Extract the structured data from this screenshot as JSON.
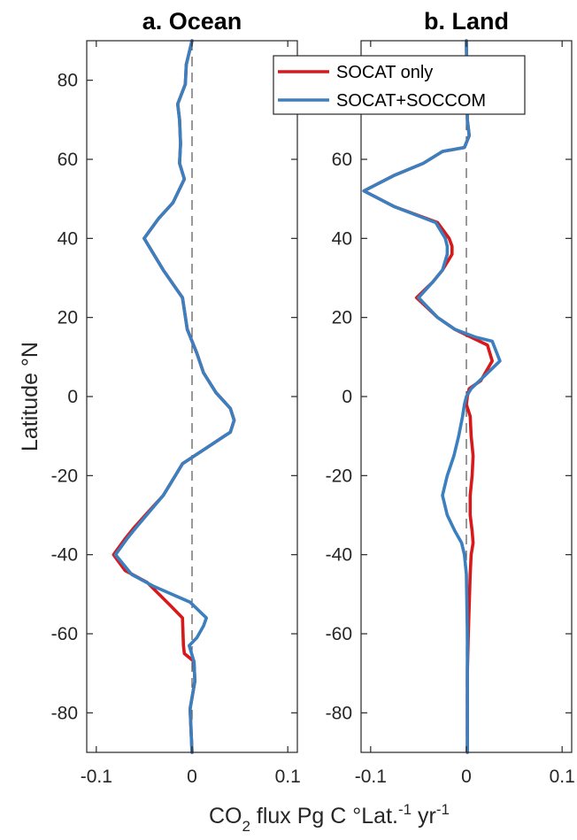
{
  "chart_data": [
    {
      "type": "line",
      "title": "a. Ocean",
      "ylabel": "Latitude °N",
      "xlabel": "",
      "xlim": [
        -0.11,
        0.11
      ],
      "ylim": [
        -90,
        90
      ],
      "xticks": [
        -0.1,
        0,
        0.1
      ],
      "xtick_labels": [
        "-0.1",
        "0",
        "0.1"
      ],
      "yticks": [
        80,
        60,
        40,
        20,
        0,
        -20,
        -40,
        -60,
        -80
      ],
      "ytick_labels": [
        "80",
        "60",
        "40",
        "20",
        "0",
        "-20",
        "-40",
        "-60",
        "-80"
      ],
      "zero_line": true,
      "series": [
        {
          "name": "SOCAT only",
          "color": "#d7191c",
          "points": [
            [
              0.0,
              -90
            ],
            [
              -0.002,
              -79
            ],
            [
              0.003,
              -72
            ],
            [
              0.002,
              -67
            ],
            [
              -0.008,
              -65
            ],
            [
              -0.009,
              -63
            ],
            [
              -0.01,
              -56
            ],
            [
              -0.022,
              -53
            ],
            [
              -0.047,
              -47
            ],
            [
              -0.07,
              -44
            ],
            [
              -0.082,
              -40
            ],
            [
              -0.07,
              -36
            ],
            [
              -0.06,
              -33
            ],
            [
              -0.045,
              -29
            ],
            [
              -0.03,
              -25
            ],
            [
              -0.02,
              -21
            ],
            [
              -0.01,
              -17
            ],
            [
              0.015,
              -13
            ],
            [
              0.04,
              -9
            ],
            [
              0.044,
              -6
            ],
            [
              0.04,
              -3
            ],
            [
              0.025,
              1
            ],
            [
              0.012,
              6
            ],
            [
              0.005,
              11
            ],
            [
              -0.005,
              17
            ],
            [
              -0.01,
              25
            ],
            [
              -0.03,
              32
            ],
            [
              -0.05,
              40
            ],
            [
              -0.035,
              45
            ],
            [
              -0.02,
              49
            ],
            [
              -0.008,
              55
            ],
            [
              -0.013,
              59
            ],
            [
              -0.012,
              64
            ],
            [
              -0.013,
              70
            ],
            [
              -0.015,
              74
            ],
            [
              -0.007,
              79
            ],
            [
              -0.006,
              84
            ],
            [
              0.0,
              90
            ]
          ]
        },
        {
          "name": "SOCAT+SOCCOM",
          "color": "#3b7fbf",
          "points": [
            [
              0.0,
              -90
            ],
            [
              -0.002,
              -79
            ],
            [
              0.003,
              -72
            ],
            [
              0.002,
              -67
            ],
            [
              -0.003,
              -63
            ],
            [
              0.005,
              -61
            ],
            [
              0.012,
              -58
            ],
            [
              0.015,
              -56
            ],
            [
              -0.002,
              -52
            ],
            [
              -0.04,
              -48
            ],
            [
              -0.063,
              -45
            ],
            [
              -0.08,
              -40
            ],
            [
              -0.068,
              -36
            ],
            [
              -0.058,
              -33
            ],
            [
              -0.044,
              -29
            ],
            [
              -0.03,
              -25
            ],
            [
              -0.02,
              -21
            ],
            [
              -0.01,
              -17
            ],
            [
              0.015,
              -13
            ],
            [
              0.04,
              -9
            ],
            [
              0.044,
              -6
            ],
            [
              0.04,
              -3
            ],
            [
              0.025,
              1
            ],
            [
              0.012,
              6
            ],
            [
              0.005,
              11
            ],
            [
              -0.005,
              17
            ],
            [
              -0.01,
              25
            ],
            [
              -0.03,
              32
            ],
            [
              -0.05,
              40
            ],
            [
              -0.035,
              45
            ],
            [
              -0.02,
              49
            ],
            [
              -0.008,
              55
            ],
            [
              -0.013,
              59
            ],
            [
              -0.012,
              64
            ],
            [
              -0.013,
              70
            ],
            [
              -0.015,
              74
            ],
            [
              -0.007,
              79
            ],
            [
              -0.006,
              84
            ],
            [
              0.0,
              90
            ]
          ]
        }
      ]
    },
    {
      "type": "line",
      "title": "b. Land",
      "xlabel": "CO2 flux Pg C °Lat.-1 yr-1",
      "ylabel": "",
      "xlim": [
        -0.11,
        0.11
      ],
      "ylim": [
        -90,
        90
      ],
      "xticks": [
        -0.1,
        0,
        0.1
      ],
      "xtick_labels": [
        "-0.1",
        "0",
        "0.1"
      ],
      "yticks": [
        60,
        40,
        20,
        0,
        -20,
        -40,
        -60,
        -80
      ],
      "ytick_labels": [
        "60",
        "40",
        "20",
        "0",
        "-20",
        "-40",
        "-60",
        "-80"
      ],
      "zero_line": true,
      "legend": {
        "position": "top-right",
        "entries": [
          "SOCAT only",
          "SOCAT+SOCCOM"
        ]
      },
      "series": [
        {
          "name": "SOCAT only",
          "color": "#d7191c",
          "points": [
            [
              0.001,
              -90
            ],
            [
              0.001,
              -70
            ],
            [
              0.002,
              -60
            ],
            [
              0.004,
              -45
            ],
            [
              0.005,
              -40
            ],
            [
              0.007,
              -37
            ],
            [
              0.006,
              -34
            ],
            [
              0.004,
              -30
            ],
            [
              0.004,
              -25
            ],
            [
              0.006,
              -20
            ],
            [
              0.007,
              -15
            ],
            [
              0.005,
              -10
            ],
            [
              0.004,
              -5
            ],
            [
              0.0,
              -2
            ],
            [
              0.001,
              0
            ],
            [
              0.003,
              2
            ],
            [
              0.015,
              4
            ],
            [
              0.027,
              9
            ],
            [
              0.022,
              13
            ],
            [
              0.005,
              15
            ],
            [
              -0.012,
              17
            ],
            [
              -0.03,
              20
            ],
            [
              -0.052,
              25
            ],
            [
              -0.035,
              29
            ],
            [
              -0.025,
              32
            ],
            [
              -0.015,
              36
            ],
            [
              -0.015,
              38
            ],
            [
              -0.018,
              40
            ],
            [
              -0.03,
              44
            ],
            [
              -0.075,
              48
            ],
            [
              -0.107,
              52
            ],
            [
              -0.075,
              56
            ],
            [
              -0.045,
              59
            ],
            [
              -0.025,
              62
            ],
            [
              -0.002,
              63
            ],
            [
              0.003,
              66
            ],
            [
              0.001,
              70
            ],
            [
              0.0,
              90
            ]
          ]
        },
        {
          "name": "SOCAT+SOCCOM",
          "color": "#3b7fbf",
          "points": [
            [
              0.001,
              -90
            ],
            [
              0.001,
              -70
            ],
            [
              0.001,
              -60
            ],
            [
              0.0,
              -45
            ],
            [
              -0.002,
              -40
            ],
            [
              -0.005,
              -37
            ],
            [
              -0.012,
              -34
            ],
            [
              -0.02,
              -30
            ],
            [
              -0.025,
              -25
            ],
            [
              -0.02,
              -20
            ],
            [
              -0.013,
              -15
            ],
            [
              -0.008,
              -10
            ],
            [
              -0.004,
              -5
            ],
            [
              -0.002,
              -2
            ],
            [
              0.0,
              0
            ],
            [
              0.005,
              2
            ],
            [
              0.018,
              5
            ],
            [
              0.035,
              9
            ],
            [
              0.027,
              14
            ],
            [
              0.01,
              15
            ],
            [
              -0.012,
              17
            ],
            [
              -0.03,
              20
            ],
            [
              -0.05,
              25
            ],
            [
              -0.035,
              29
            ],
            [
              -0.025,
              32
            ],
            [
              -0.02,
              36
            ],
            [
              -0.02,
              38
            ],
            [
              -0.022,
              40
            ],
            [
              -0.032,
              44
            ],
            [
              -0.075,
              48
            ],
            [
              -0.107,
              52
            ],
            [
              -0.075,
              56
            ],
            [
              -0.045,
              59
            ],
            [
              -0.025,
              62
            ],
            [
              -0.002,
              63
            ],
            [
              0.003,
              66
            ],
            [
              0.001,
              70
            ],
            [
              0.0,
              90
            ]
          ]
        }
      ]
    }
  ],
  "xlabel_parts": {
    "base": "CO",
    "sub": "2",
    "mid": " flux Pg C °Lat.",
    "sup1": "-1",
    "mid2": " yr",
    "sup2": "-1"
  }
}
